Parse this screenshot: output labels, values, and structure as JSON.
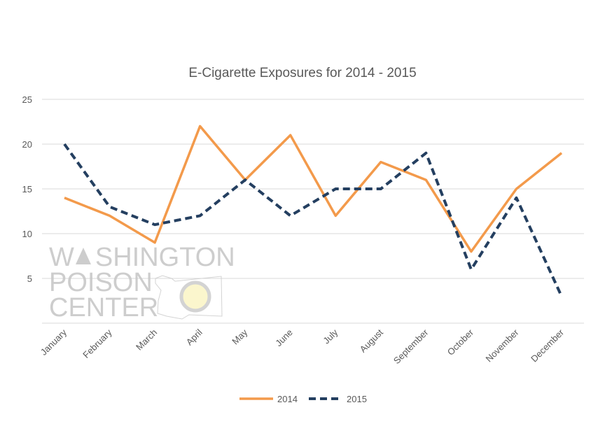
{
  "chart_data": {
    "type": "line",
    "title": "E-Cigarette Exposures for 2014 - 2015",
    "xlabel": "",
    "ylabel": "",
    "ylim": [
      0,
      25
    ],
    "yticks": [
      5,
      10,
      15,
      20,
      25
    ],
    "grid": true,
    "legend_position": "bottom",
    "categories": [
      "January",
      "February",
      "March",
      "April",
      "May",
      "June",
      "July",
      "August",
      "September",
      "October",
      "November",
      "December"
    ],
    "series": [
      {
        "name": "2014",
        "color": "#F39A4B",
        "style": "solid",
        "values": [
          14,
          12,
          9,
          22,
          16,
          21,
          12,
          18,
          16,
          8,
          15,
          19
        ]
      },
      {
        "name": "2015",
        "color": "#243F60",
        "style": "dashed",
        "values": [
          20,
          13,
          11,
          12,
          16,
          12,
          15,
          15,
          19,
          6,
          14,
          3
        ]
      }
    ]
  },
  "watermark": {
    "line1": "WASHINGTON",
    "line2": "POISON",
    "line3": "CENTER"
  }
}
